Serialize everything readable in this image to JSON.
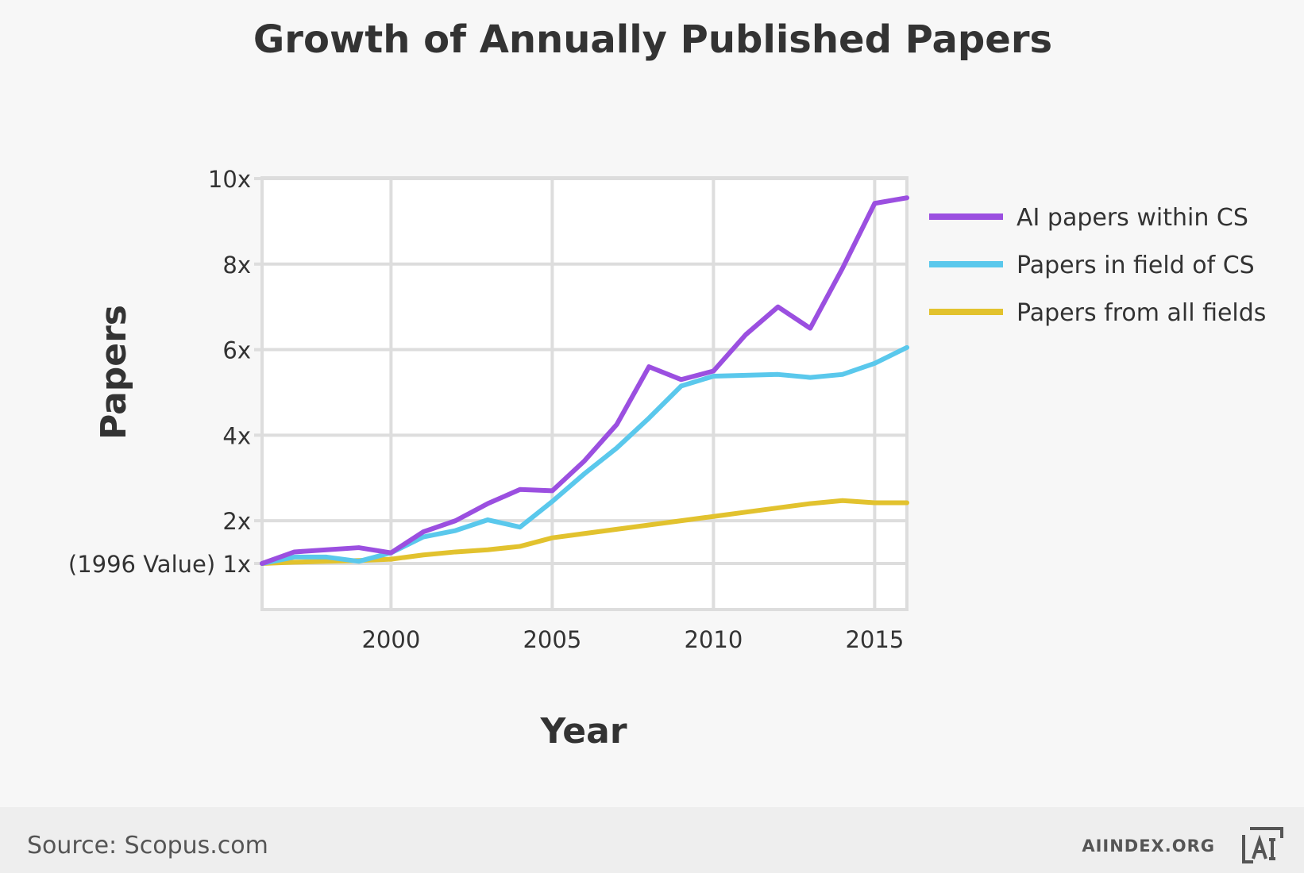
{
  "chart_data": {
    "type": "line",
    "title": "Growth of Annually Published Papers",
    "xlabel": "Year",
    "ylabel": "Papers",
    "xlim": [
      1996,
      2016
    ],
    "ylim": [
      0,
      10
    ],
    "x_ticks": [
      2000,
      2005,
      2010,
      2015
    ],
    "y_ticks": [
      {
        "value": 1,
        "label": "(1996 Value) 1x"
      },
      {
        "value": 2,
        "label": "2x"
      },
      {
        "value": 4,
        "label": "4x"
      },
      {
        "value": 6,
        "label": "6x"
      },
      {
        "value": 8,
        "label": "8x"
      },
      {
        "value": 10,
        "label": "10x"
      }
    ],
    "grid": true,
    "legend_position": "right",
    "x": [
      1996,
      1997,
      1998,
      1999,
      2000,
      2001,
      2002,
      2003,
      2004,
      2005,
      2006,
      2007,
      2008,
      2009,
      2010,
      2011,
      2012,
      2013,
      2014,
      2015,
      2016
    ],
    "series": [
      {
        "name": "AI papers within CS",
        "color": "#9b4fe0",
        "values": [
          1.0,
          1.27,
          1.32,
          1.37,
          1.25,
          1.74,
          2.0,
          2.4,
          2.73,
          2.7,
          3.4,
          4.25,
          5.6,
          5.3,
          5.5,
          6.35,
          7.0,
          6.5,
          7.9,
          9.42,
          9.55
        ]
      },
      {
        "name": "Papers in field of CS",
        "color": "#5ac8ec",
        "values": [
          1.0,
          1.15,
          1.15,
          1.05,
          1.25,
          1.62,
          1.77,
          2.02,
          1.85,
          2.45,
          3.1,
          3.7,
          4.4,
          5.15,
          5.38,
          5.4,
          5.42,
          5.35,
          5.42,
          5.68,
          6.05
        ]
      },
      {
        "name": "Papers from all fields",
        "color": "#e2c22e",
        "values": [
          1.0,
          1.03,
          1.05,
          1.07,
          1.1,
          1.2,
          1.27,
          1.32,
          1.4,
          1.6,
          1.7,
          1.8,
          1.9,
          2.0,
          2.1,
          2.2,
          2.3,
          2.4,
          2.47,
          2.42,
          2.42
        ]
      }
    ]
  },
  "footer": {
    "source": "Source: Scopus.com",
    "brand": "AIINDEX.ORG",
    "logo_icon": "ai-index-logo-icon"
  },
  "colors": {
    "background": "#f7f7f7",
    "plot_background": "#ffffff",
    "grid": "#dddddd",
    "text": "#333333"
  }
}
